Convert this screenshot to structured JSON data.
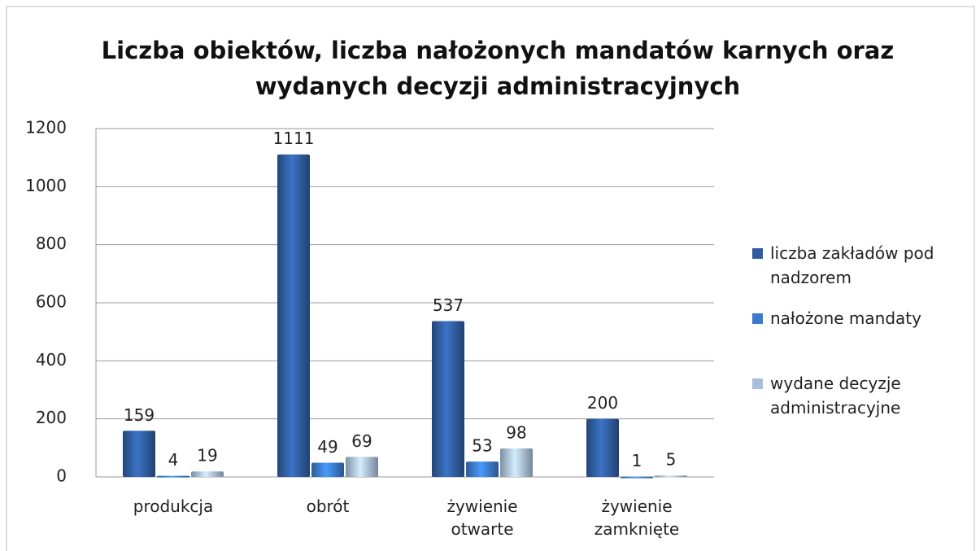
{
  "chart_data": {
    "type": "bar",
    "title": "Liczba obiektów, liczba nałożonych mandatów karnych oraz wydanych decyzji administracyjnych",
    "categories": [
      "produkcja",
      "obrót",
      "żywienie otwarte",
      "żywienie zamknięte"
    ],
    "series": [
      {
        "name": "liczba zakładów pod nadzorem",
        "color": "#2f5d9f",
        "values": [
          159,
          1111,
          537,
          200
        ]
      },
      {
        "name": "nałożone mandaty",
        "color": "#3b7bcb",
        "values": [
          4,
          49,
          53,
          1
        ]
      },
      {
        "name": "wydane decyzje administracyjne",
        "color": "#a8bedc",
        "values": [
          19,
          69,
          98,
          5
        ]
      }
    ],
    "ylim": [
      0,
      1200
    ],
    "yticks": [
      0,
      200,
      400,
      600,
      800,
      1000,
      1200
    ],
    "grid": true,
    "legend": "right"
  }
}
